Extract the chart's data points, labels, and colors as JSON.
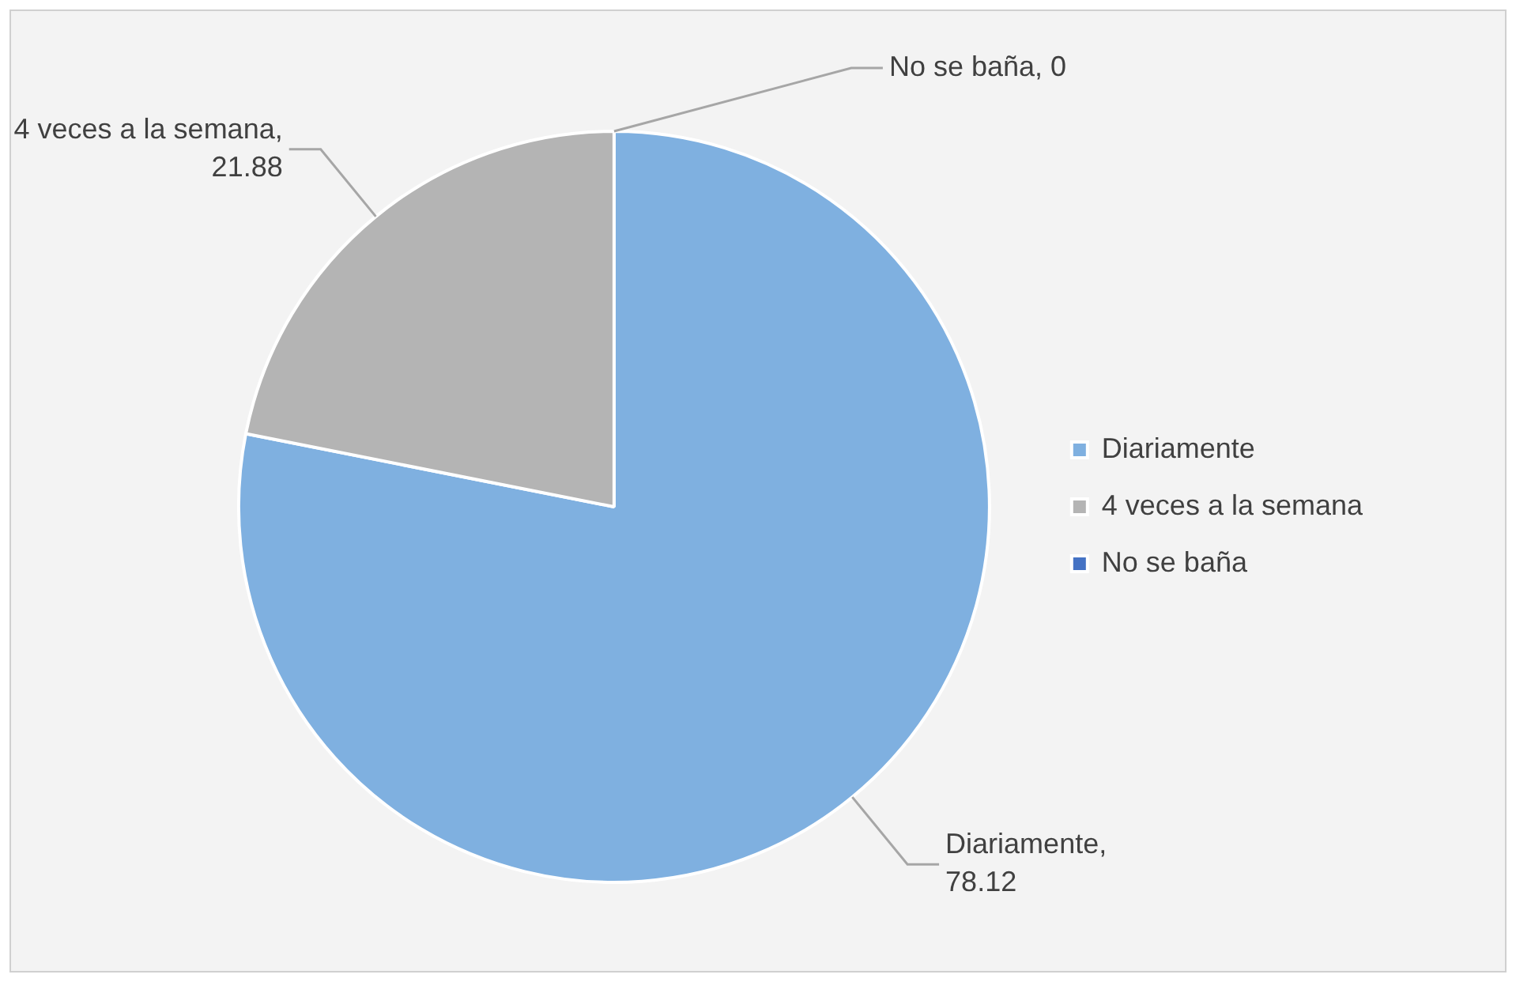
{
  "chart_data": {
    "type": "pie",
    "categories": [
      "Diariamente",
      "4 veces a la semana",
      "No se baña"
    ],
    "values": [
      78.12,
      21.88,
      0
    ],
    "colors": [
      "#7fb0e0",
      "#b4b4b4",
      "#4472c4"
    ],
    "data_labels": true,
    "annotations": [
      "Diariamente, 78.12",
      "4 veces a la semana, 21.88",
      "No se baña, 0"
    ],
    "legend": "right"
  }
}
